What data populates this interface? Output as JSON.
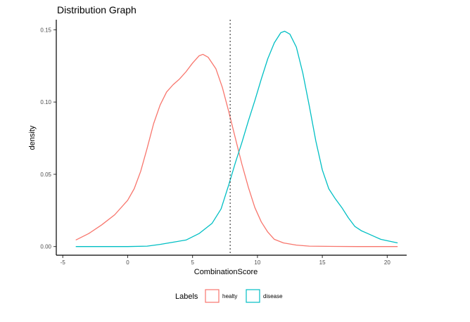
{
  "chart_data": {
    "type": "line",
    "title": "Distribution Graph",
    "xlabel": "CombinationScore",
    "ylabel": "density",
    "xlim": [
      -5.5,
      21.5
    ],
    "ylim": [
      -0.006,
      0.157
    ],
    "x_ticks": [
      -5,
      0,
      5,
      10,
      15,
      20
    ],
    "x_tick_labels": [
      "-5",
      "0",
      "5",
      "10",
      "15",
      "20"
    ],
    "y_ticks": [
      0.0,
      0.05,
      0.1,
      0.15
    ],
    "y_tick_labels": [
      "0.00",
      "0.05",
      "0.10",
      "0.15"
    ],
    "grid": false,
    "legend": {
      "title": "Labels",
      "placement": "bottom"
    },
    "vline": {
      "x": 7.9,
      "style": "dotted"
    },
    "series": [
      {
        "name": "healty",
        "color": "#F8766D",
        "points": [
          [
            -4,
            0.0045
          ],
          [
            -3,
            0.009
          ],
          [
            -2,
            0.015
          ],
          [
            -1,
            0.022
          ],
          [
            0,
            0.032
          ],
          [
            0.5,
            0.04
          ],
          [
            1,
            0.052
          ],
          [
            1.5,
            0.068
          ],
          [
            2,
            0.085
          ],
          [
            2.5,
            0.098
          ],
          [
            3,
            0.107
          ],
          [
            3.5,
            0.112
          ],
          [
            4,
            0.116
          ],
          [
            4.5,
            0.121
          ],
          [
            5,
            0.127
          ],
          [
            5.5,
            0.132
          ],
          [
            5.8,
            0.133
          ],
          [
            6.2,
            0.131
          ],
          [
            6.8,
            0.123
          ],
          [
            7.3,
            0.11
          ],
          [
            7.8,
            0.093
          ],
          [
            8.3,
            0.075
          ],
          [
            8.8,
            0.057
          ],
          [
            9.3,
            0.041
          ],
          [
            9.8,
            0.027
          ],
          [
            10.3,
            0.017
          ],
          [
            10.8,
            0.01
          ],
          [
            11.3,
            0.005
          ],
          [
            12,
            0.0025
          ],
          [
            13,
            0.001
          ],
          [
            14,
            0.0003
          ],
          [
            16,
            0.0001
          ],
          [
            18,
            0.0
          ],
          [
            20.8,
            0.0
          ]
        ]
      },
      {
        "name": "disease",
        "color": "#00BFC4",
        "points": [
          [
            -4,
            0.0
          ],
          [
            0,
            0.0
          ],
          [
            1.5,
            0.0003
          ],
          [
            2.5,
            0.0015
          ],
          [
            3.5,
            0.003
          ],
          [
            4.5,
            0.0045
          ],
          [
            5.5,
            0.009
          ],
          [
            6.5,
            0.016
          ],
          [
            7.2,
            0.026
          ],
          [
            7.8,
            0.043
          ],
          [
            8.3,
            0.058
          ],
          [
            8.8,
            0.072
          ],
          [
            9.3,
            0.087
          ],
          [
            9.8,
            0.101
          ],
          [
            10.3,
            0.116
          ],
          [
            10.8,
            0.13
          ],
          [
            11.3,
            0.141
          ],
          [
            11.8,
            0.148
          ],
          [
            12.1,
            0.149
          ],
          [
            12.5,
            0.147
          ],
          [
            13,
            0.138
          ],
          [
            13.5,
            0.12
          ],
          [
            14,
            0.097
          ],
          [
            14.5,
            0.073
          ],
          [
            15,
            0.053
          ],
          [
            15.5,
            0.04
          ],
          [
            16,
            0.033
          ],
          [
            16.5,
            0.027
          ],
          [
            17,
            0.02
          ],
          [
            17.5,
            0.014
          ],
          [
            18,
            0.011
          ],
          [
            18.5,
            0.009
          ],
          [
            19,
            0.007
          ],
          [
            19.5,
            0.005
          ],
          [
            20,
            0.004
          ],
          [
            20.8,
            0.0025
          ]
        ]
      }
    ]
  }
}
